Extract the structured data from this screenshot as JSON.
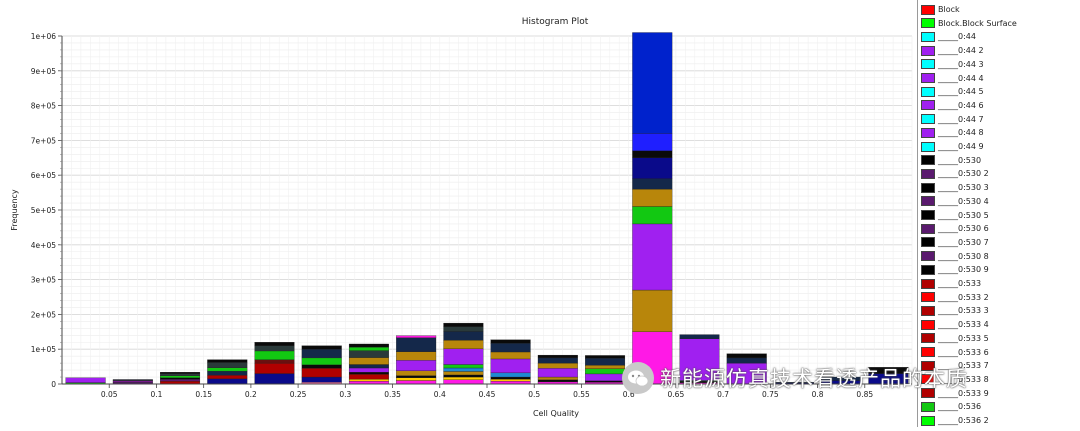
{
  "chart_data": {
    "type": "bar",
    "title": "Histogram Plot",
    "xlabel": "Cell Quality",
    "ylabel": "Frequency",
    "xlim": [
      0,
      0.9
    ],
    "ylim": [
      0,
      1000000
    ],
    "x_ticks": [
      0.05,
      0.1,
      0.15,
      0.2,
      0.25,
      0.3,
      0.35,
      0.4,
      0.45,
      0.5,
      0.55,
      0.6,
      0.65,
      0.7,
      0.75,
      0.8,
      0.85
    ],
    "x_tick_labels": [
      "0.05",
      "0.1",
      "0.15",
      "0.2",
      "0.25",
      "0.3",
      "0.35",
      "0.4",
      "0.45",
      "0.5",
      "0.55",
      "0.6",
      "0.65",
      "0.7",
      "0.75",
      "0.8",
      "0.85"
    ],
    "y_ticks": [
      0,
      100000,
      200000,
      300000,
      400000,
      500000,
      600000,
      700000,
      800000,
      900000,
      1000000
    ],
    "y_tick_labels": [
      "0",
      "1e+05",
      "2e+05",
      "3e+05",
      "4e+05",
      "5e+05",
      "6e+05",
      "7e+05",
      "8e+05",
      "9e+05",
      "1e+06"
    ],
    "grid": true,
    "legend_position": "right",
    "bin_width": 0.05,
    "bins": [
      {
        "x0": 0.0,
        "segments": [
          {
            "color": "#12c812",
            "value": 4000
          },
          {
            "color": "#a020f0",
            "value": 14000
          }
        ]
      },
      {
        "x0": 0.05,
        "segments": [
          {
            "color": "#5a1a6e",
            "value": 5000
          },
          {
            "color": "#7a1a8e",
            "value": 4000
          },
          {
            "color": "#303040",
            "value": 4000
          }
        ]
      },
      {
        "x0": 0.1,
        "segments": [
          {
            "color": "#b00000",
            "value": 8000
          },
          {
            "color": "#5a1a6e",
            "value": 6000
          },
          {
            "color": "#0a0a0a",
            "value": 4000
          },
          {
            "color": "#12c812",
            "value": 6000
          },
          {
            "color": "#2a3a3a",
            "value": 6000
          },
          {
            "color": "#0a0a0a",
            "value": 4000
          }
        ]
      },
      {
        "x0": 0.15,
        "segments": [
          {
            "color": "#0a0a8a",
            "value": 15000
          },
          {
            "color": "#b00000",
            "value": 10000
          },
          {
            "color": "#14284a",
            "value": 12000
          },
          {
            "color": "#12c812",
            "value": 10000
          },
          {
            "color": "#2a3a3a",
            "value": 15000
          },
          {
            "color": "#0a0a0a",
            "value": 8000
          }
        ]
      },
      {
        "x0": 0.2,
        "segments": [
          {
            "color": "#0a0a8a",
            "value": 30000
          },
          {
            "color": "#b00000",
            "value": 30000
          },
          {
            "color": "#6a1010",
            "value": 10000
          },
          {
            "color": "#12c812",
            "value": 25000
          },
          {
            "color": "#2a3a3a",
            "value": 15000
          },
          {
            "color": "#0a0a0a",
            "value": 10000
          }
        ]
      },
      {
        "x0": 0.25,
        "segments": [
          {
            "color": "#ff7ab0",
            "value": 5000
          },
          {
            "color": "#0a0a8a",
            "value": 15000
          },
          {
            "color": "#b00000",
            "value": 25000
          },
          {
            "color": "#0a0a0a",
            "value": 10000
          },
          {
            "color": "#12c812",
            "value": 20000
          },
          {
            "color": "#14284a",
            "value": 25000
          },
          {
            "color": "#0a0a0a",
            "value": 10000
          }
        ]
      },
      {
        "x0": 0.3,
        "segments": [
          {
            "color": "#ff19e6",
            "value": 8000
          },
          {
            "color": "#ffcc00",
            "value": 6000
          },
          {
            "color": "#b00000",
            "value": 14000
          },
          {
            "color": "#0a0a0a",
            "value": 6000
          },
          {
            "color": "#a020f0",
            "value": 12000
          },
          {
            "color": "#14284a",
            "value": 10000
          },
          {
            "color": "#b8860b",
            "value": 20000
          },
          {
            "color": "#2a3a3a",
            "value": 20000
          },
          {
            "color": "#12c812",
            "value": 10000
          },
          {
            "color": "#0a0a0a",
            "value": 9000
          }
        ]
      },
      {
        "x0": 0.35,
        "segments": [
          {
            "color": "#ff19e6",
            "value": 10000
          },
          {
            "color": "#ffcc00",
            "value": 8000
          },
          {
            "color": "#0a0a0a",
            "value": 6000
          },
          {
            "color": "#b8860b",
            "value": 14000
          },
          {
            "color": "#a020f0",
            "value": 30000
          },
          {
            "color": "#b8860b",
            "value": 25000
          },
          {
            "color": "#14284a",
            "value": 40000
          },
          {
            "color": "#ff19e6",
            "value": 6000
          }
        ]
      },
      {
        "x0": 0.4,
        "segments": [
          {
            "color": "#ff19e6",
            "value": 12000
          },
          {
            "color": "#ffcc00",
            "value": 8000
          },
          {
            "color": "#0a0a0a",
            "value": 6000
          },
          {
            "color": "#b8860b",
            "value": 10000
          },
          {
            "color": "#1f8ad2",
            "value": 10000
          },
          {
            "color": "#12c812",
            "value": 10000
          },
          {
            "color": "#a020f0",
            "value": 45000
          },
          {
            "color": "#b8860b",
            "value": 25000
          },
          {
            "color": "#14284a",
            "value": 25000
          },
          {
            "color": "#2a3a3a",
            "value": 14000
          },
          {
            "color": "#0a0a0a",
            "value": 10000
          }
        ]
      },
      {
        "x0": 0.45,
        "segments": [
          {
            "color": "#ff19e6",
            "value": 8000
          },
          {
            "color": "#ffcc00",
            "value": 6000
          },
          {
            "color": "#0a0a0a",
            "value": 6000
          },
          {
            "color": "#1f8ad2",
            "value": 12000
          },
          {
            "color": "#a020f0",
            "value": 40000
          },
          {
            "color": "#b8860b",
            "value": 20000
          },
          {
            "color": "#14284a",
            "value": 25000
          },
          {
            "color": "#0a0a0a",
            "value": 10000
          }
        ]
      },
      {
        "x0": 0.5,
        "segments": [
          {
            "color": "#ff19e6",
            "value": 6000
          },
          {
            "color": "#0a0a0a",
            "value": 6000
          },
          {
            "color": "#b8860b",
            "value": 8000
          },
          {
            "color": "#a020f0",
            "value": 25000
          },
          {
            "color": "#b8860b",
            "value": 15000
          },
          {
            "color": "#14284a",
            "value": 15000
          },
          {
            "color": "#0a0a0a",
            "value": 8000
          }
        ]
      },
      {
        "x0": 0.55,
        "segments": [
          {
            "color": "#ff19e6",
            "value": 5000
          },
          {
            "color": "#0a0a0a",
            "value": 4000
          },
          {
            "color": "#a020f0",
            "value": 20000
          },
          {
            "color": "#12c812",
            "value": 15000
          },
          {
            "color": "#b8860b",
            "value": 10000
          },
          {
            "color": "#14284a",
            "value": 20000
          },
          {
            "color": "#0a0a0a",
            "value": 8000
          }
        ]
      },
      {
        "x0": 0.6,
        "segments": [
          {
            "color": "#ff19e6",
            "value": 150000
          },
          {
            "color": "#b8860b",
            "value": 120000
          },
          {
            "color": "#a020f0",
            "value": 190000
          },
          {
            "color": "#12c812",
            "value": 50000
          },
          {
            "color": "#b8860b",
            "value": 50000
          },
          {
            "color": "#14284a",
            "value": 30000
          },
          {
            "color": "#0a0a8a",
            "value": 60000
          },
          {
            "color": "#0a0a0a",
            "value": 20000
          },
          {
            "color": "#1f1fff",
            "value": 50000
          },
          {
            "color": "#0022cc",
            "value": 290000
          }
        ]
      },
      {
        "x0": 0.65,
        "segments": [
          {
            "color": "#ff19e6",
            "value": 4000
          },
          {
            "color": "#0a0a0a",
            "value": 4000
          },
          {
            "color": "#12c812",
            "value": 2000
          },
          {
            "color": "#a020f0",
            "value": 120000
          },
          {
            "color": "#14284a",
            "value": 12000
          }
        ]
      },
      {
        "x0": 0.7,
        "segments": [
          {
            "color": "#a020f0",
            "value": 60000
          },
          {
            "color": "#14284a",
            "value": 15000
          },
          {
            "color": "#0a0a0a",
            "value": 12000
          }
        ]
      },
      {
        "x0": 0.75,
        "segments": [
          {
            "color": "#0a0a8a",
            "value": 3000
          },
          {
            "color": "#14284a",
            "value": 2000
          }
        ]
      },
      {
        "x0": 0.8,
        "segments": [
          {
            "color": "#0a0a8a",
            "value": 10000
          },
          {
            "color": "#14284a",
            "value": 10000
          }
        ]
      },
      {
        "x0": 0.85,
        "segments": [
          {
            "color": "#0a0a8a",
            "value": 30000
          },
          {
            "color": "#0a0a0a",
            "value": 18000
          }
        ]
      }
    ]
  },
  "legend": [
    {
      "label": "Block",
      "color": "#ff0000"
    },
    {
      "label": "Block.Block Surface",
      "color": "#00ff00"
    },
    {
      "label": "_____0:44",
      "color": "#00ffff"
    },
    {
      "label": "_____0:44 2",
      "color": "#a020f0"
    },
    {
      "label": "_____0:44 3",
      "color": "#00ffff"
    },
    {
      "label": "_____0:44 4",
      "color": "#a020f0"
    },
    {
      "label": "_____0:44 5",
      "color": "#00ffff"
    },
    {
      "label": "_____0:44 6",
      "color": "#a020f0"
    },
    {
      "label": "_____0:44 7",
      "color": "#00ffff"
    },
    {
      "label": "_____0:44 8",
      "color": "#a020f0"
    },
    {
      "label": "_____0:44 9",
      "color": "#00ffff"
    },
    {
      "label": "_____0:530",
      "color": "#000000"
    },
    {
      "label": "_____0:530 2",
      "color": "#5a1a6e"
    },
    {
      "label": "_____0:530 3",
      "color": "#000000"
    },
    {
      "label": "_____0:530 4",
      "color": "#5a1a6e"
    },
    {
      "label": "_____0:530 5",
      "color": "#000000"
    },
    {
      "label": "_____0:530 6",
      "color": "#5a1a6e"
    },
    {
      "label": "_____0:530 7",
      "color": "#000000"
    },
    {
      "label": "_____0:530 8",
      "color": "#5a1a6e"
    },
    {
      "label": "_____0:530 9",
      "color": "#000000"
    },
    {
      "label": "_____0:533",
      "color": "#b00000"
    },
    {
      "label": "_____0:533 2",
      "color": "#ff0000"
    },
    {
      "label": "_____0:533 3",
      "color": "#b00000"
    },
    {
      "label": "_____0:533 4",
      "color": "#ff0000"
    },
    {
      "label": "_____0:533 5",
      "color": "#b00000"
    },
    {
      "label": "_____0:533 6",
      "color": "#ff0000"
    },
    {
      "label": "_____0:533 7",
      "color": "#b00000"
    },
    {
      "label": "_____0:533 8",
      "color": "#ff0000"
    },
    {
      "label": "_____0:533 9",
      "color": "#b00000"
    },
    {
      "label": "_____0:536",
      "color": "#12c812"
    },
    {
      "label": "_____0:536 2",
      "color": "#00ff00"
    }
  ],
  "watermark": {
    "text": "新能源仿真技术看透产品的本质"
  }
}
